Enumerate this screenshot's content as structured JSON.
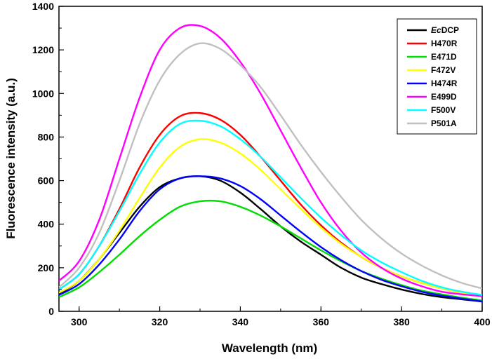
{
  "chart_data": {
    "type": "line",
    "xlabel": "Wavelength (nm)",
    "ylabel": "Fluorescence intensity (a.u.)",
    "xlim": [
      295,
      400
    ],
    "ylim": [
      0,
      1400
    ],
    "xticks": [
      300,
      320,
      340,
      360,
      380,
      400
    ],
    "yticks": [
      0,
      200,
      400,
      600,
      800,
      1000,
      1200,
      1400
    ],
    "grid": false,
    "legend_position": "top-right",
    "x": [
      295,
      300,
      305,
      310,
      315,
      320,
      325,
      330,
      335,
      340,
      345,
      350,
      355,
      360,
      365,
      370,
      375,
      380,
      385,
      390,
      395,
      400
    ],
    "series": [
      {
        "name": "EcDCP",
        "name_prefix_italic": "Ec",
        "name_suffix": "DCP",
        "color": "#000000",
        "values": [
          80,
          140,
          240,
          360,
          480,
          570,
          610,
          620,
          600,
          545,
          470,
          390,
          320,
          260,
          200,
          155,
          125,
          100,
          80,
          65,
          55,
          45
        ]
      },
      {
        "name": "H470R",
        "color": "#ff0000",
        "values": [
          100,
          170,
          300,
          470,
          660,
          810,
          895,
          910,
          880,
          810,
          710,
          600,
          490,
          395,
          315,
          250,
          200,
          160,
          130,
          105,
          85,
          70
        ]
      },
      {
        "name": "E471D",
        "color": "#00dd00",
        "values": [
          65,
          110,
          180,
          260,
          345,
          420,
          480,
          505,
          505,
          480,
          440,
          390,
          335,
          280,
          230,
          185,
          150,
          120,
          95,
          78,
          62,
          50
        ]
      },
      {
        "name": "F472V",
        "color": "#ffff00",
        "values": [
          85,
          140,
          240,
          370,
          520,
          660,
          755,
          790,
          775,
          725,
          650,
          560,
          470,
          385,
          310,
          250,
          200,
          160,
          130,
          105,
          85,
          70
        ]
      },
      {
        "name": "H474R",
        "color": "#0000ff",
        "values": [
          75,
          125,
          215,
          330,
          460,
          560,
          610,
          620,
          610,
          575,
          515,
          440,
          365,
          295,
          235,
          185,
          145,
          115,
          90,
          72,
          58,
          45
        ]
      },
      {
        "name": "E499D",
        "color": "#ff00ff",
        "values": [
          140,
          230,
          420,
          700,
          980,
          1200,
          1300,
          1310,
          1255,
          1145,
          1000,
          830,
          660,
          500,
          370,
          270,
          200,
          150,
          115,
          90,
          78,
          70
        ]
      },
      {
        "name": "F500V",
        "color": "#00ffff",
        "values": [
          100,
          170,
          300,
          460,
          630,
          775,
          860,
          875,
          850,
          790,
          710,
          615,
          520,
          430,
          350,
          280,
          225,
          180,
          140,
          110,
          90,
          75
        ]
      },
      {
        "name": "P501A",
        "color": "#c0c0c0",
        "values": [
          110,
          200,
          360,
          600,
          860,
          1060,
          1180,
          1230,
          1205,
          1130,
          1030,
          900,
          765,
          640,
          525,
          420,
          335,
          265,
          210,
          165,
          130,
          105
        ]
      }
    ]
  }
}
